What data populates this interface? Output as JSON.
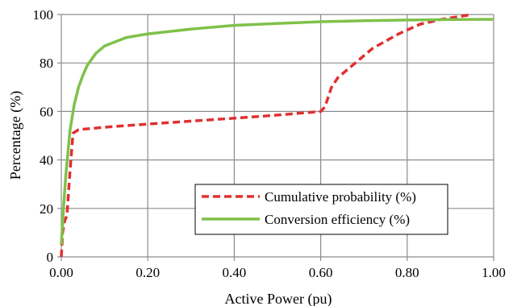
{
  "chart_data": {
    "type": "line",
    "title": "",
    "xlabel": "Active Power (pu)",
    "ylabel": "Percentage (%)",
    "xlim": [
      0,
      1
    ],
    "ylim": [
      0,
      100
    ],
    "x_ticks": [
      0,
      0.2,
      0.4,
      0.6,
      0.8,
      1.0
    ],
    "x_tick_labels": [
      "0.00",
      "0.20",
      "0.40",
      "0.60",
      "0.80",
      "1.00"
    ],
    "y_ticks": [
      0,
      20,
      40,
      60,
      80,
      100
    ],
    "y_tick_labels": [
      "0",
      "20",
      "40",
      "60",
      "80",
      "100"
    ],
    "grid": true,
    "legend_position": "bottom-right",
    "series": [
      {
        "name": "Cumulative probability (%)",
        "color": "#e03030",
        "style": "dashed",
        "points": [
          [
            0,
            0
          ],
          [
            0.003,
            10
          ],
          [
            0.008,
            15
          ],
          [
            0.013,
            17
          ],
          [
            0.02,
            35
          ],
          [
            0.027,
            51
          ],
          [
            0.04,
            52.5
          ],
          [
            0.1,
            53.5
          ],
          [
            0.2,
            54.8
          ],
          [
            0.3,
            56
          ],
          [
            0.4,
            57.2
          ],
          [
            0.5,
            58.5
          ],
          [
            0.6,
            60
          ],
          [
            0.61,
            62
          ],
          [
            0.625,
            70
          ],
          [
            0.64,
            74
          ],
          [
            0.68,
            80
          ],
          [
            0.72,
            86
          ],
          [
            0.78,
            92
          ],
          [
            0.83,
            96
          ],
          [
            0.88,
            98
          ],
          [
            0.95,
            100
          ]
        ]
      },
      {
        "name": "Conversion efficiency (%)",
        "color": "#7fc14a",
        "style": "solid",
        "points": [
          [
            0,
            5
          ],
          [
            0.005,
            20
          ],
          [
            0.01,
            33
          ],
          [
            0.02,
            52
          ],
          [
            0.03,
            63
          ],
          [
            0.04,
            70
          ],
          [
            0.05,
            75
          ],
          [
            0.06,
            79
          ],
          [
            0.08,
            84
          ],
          [
            0.1,
            87
          ],
          [
            0.15,
            90.5
          ],
          [
            0.2,
            92
          ],
          [
            0.3,
            94
          ],
          [
            0.4,
            95.5
          ],
          [
            0.5,
            96.3
          ],
          [
            0.6,
            97
          ],
          [
            0.7,
            97.4
          ],
          [
            0.8,
            97.7
          ],
          [
            0.9,
            97.9
          ],
          [
            1.0,
            98
          ]
        ]
      }
    ]
  }
}
